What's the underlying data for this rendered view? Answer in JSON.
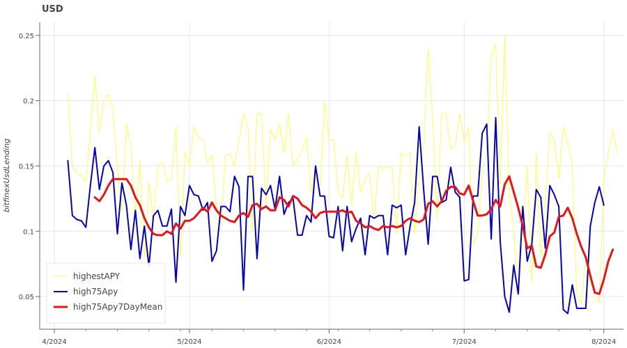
{
  "chart_data": {
    "type": "line",
    "title": "USD",
    "ylabel": "bitfinexUsdLending",
    "xlabel": "",
    "ylim": [
      0.025,
      0.26
    ],
    "x_ticks": [
      {
        "label": "4/2024",
        "day": 0
      },
      {
        "label": "5/2024",
        "day": 30
      },
      {
        "label": "6/2024",
        "day": 61
      },
      {
        "label": "7/2024",
        "day": 91
      },
      {
        "label": "8/2024",
        "day": 122
      }
    ],
    "y_ticks": [
      0.05,
      0.1,
      0.15,
      0.2,
      0.25
    ],
    "y_tick_labels": [
      "0.05",
      "0.1",
      "0.15",
      "0.2",
      "0.25"
    ],
    "x_start_day": 3,
    "x_end_day": 122,
    "grid": true,
    "legend_position": "bottom-left",
    "series": [
      {
        "name": "highestAPY",
        "color": "#ffff4d",
        "values": [
          0.205,
          0.15,
          0.145,
          0.143,
          0.138,
          0.177,
          0.219,
          0.175,
          0.2,
          0.205,
          0.193,
          0.148,
          0.115,
          0.182,
          0.165,
          0.11,
          0.154,
          0.08,
          0.138,
          0.108,
          0.15,
          0.153,
          0.138,
          0.14,
          0.18,
          0.08,
          0.16,
          0.15,
          0.18,
          0.172,
          0.17,
          0.152,
          0.158,
          0.12,
          0.105,
          0.158,
          0.159,
          0.15,
          0.17,
          0.19,
          0.18,
          0.1,
          0.19,
          0.19,
          0.12,
          0.178,
          0.17,
          0.182,
          0.16,
          0.19,
          0.15,
          0.155,
          0.162,
          0.172,
          0.13,
          0.15,
          0.128,
          0.2,
          0.17,
          0.17,
          0.13,
          0.125,
          0.158,
          0.12,
          0.16,
          0.13,
          0.14,
          0.145,
          0.109,
          0.15,
          0.148,
          0.15,
          0.148,
          0.098,
          0.16,
          0.158,
          0.16,
          0.098,
          0.145,
          0.165,
          0.24,
          0.185,
          0.11,
          0.19,
          0.19,
          0.163,
          0.165,
          0.19,
          0.168,
          0.18,
          0.09,
          0.098,
          0.145,
          0.16,
          0.235,
          0.243,
          0.135,
          0.25,
          0.13,
          0.1,
          0.05,
          0.1,
          0.15,
          0.06,
          0.16,
          0.08,
          0.12,
          0.175,
          0.17,
          0.14,
          0.18,
          0.168,
          0.15,
          0.05,
          0.045,
          0.08,
          0.06,
          0.055,
          0.045,
          0.14,
          0.16,
          0.178,
          0.16
        ]
      },
      {
        "name": "high75Apy",
        "color": "#0000cc",
        "values": [
          0.154,
          0.112,
          0.109,
          0.108,
          0.103,
          0.135,
          0.164,
          0.132,
          0.15,
          0.154,
          0.145,
          0.098,
          0.137,
          0.12,
          0.086,
          0.116,
          0.079,
          0.104,
          0.073,
          0.112,
          0.116,
          0.104,
          0.104,
          0.117,
          0.061,
          0.119,
          0.112,
          0.135,
          0.128,
          0.127,
          0.116,
          0.122,
          0.077,
          0.085,
          0.119,
          0.119,
          0.115,
          0.142,
          0.134,
          0.055,
          0.142,
          0.142,
          0.079,
          0.133,
          0.128,
          0.135,
          0.117,
          0.142,
          0.113,
          0.122,
          0.125,
          0.097,
          0.097,
          0.112,
          0.107,
          0.15,
          0.127,
          0.127,
          0.096,
          0.095,
          0.119,
          0.085,
          0.119,
          0.092,
          0.102,
          0.11,
          0.082,
          0.112,
          0.11,
          0.112,
          0.112,
          0.082,
          0.12,
          0.118,
          0.12,
          0.082,
          0.104,
          0.122,
          0.18,
          0.132,
          0.09,
          0.142,
          0.142,
          0.122,
          0.124,
          0.149,
          0.13,
          0.126,
          0.062,
          0.063,
          0.127,
          0.127,
          0.175,
          0.182,
          0.094,
          0.187,
          0.092,
          0.05,
          0.038,
          0.074,
          0.052,
          0.119,
          0.077,
          0.09,
          0.132,
          0.126,
          0.087,
          0.135,
          0.128,
          0.119,
          0.04,
          0.037,
          0.059,
          0.041,
          0.041,
          0.041,
          0.104,
          0.122,
          0.134,
          0.12
        ]
      },
      {
        "name": "high75Apy7DayMean",
        "color": "#ee1111",
        "values": [
          null,
          null,
          null,
          null,
          null,
          null,
          0.126,
          0.123,
          0.128,
          0.135,
          0.14,
          0.14,
          0.14,
          0.14,
          0.135,
          0.126,
          0.12,
          0.11,
          0.103,
          0.098,
          0.097,
          0.097,
          0.1,
          0.098,
          0.106,
          0.102,
          0.108,
          0.108,
          0.11,
          0.114,
          0.118,
          0.115,
          0.122,
          0.116,
          0.112,
          0.11,
          0.108,
          0.107,
          0.112,
          0.114,
          0.111,
          0.12,
          0.121,
          0.117,
          0.119,
          0.116,
          0.116,
          0.126,
          0.124,
          0.119,
          0.127,
          0.125,
          0.12,
          0.118,
          0.115,
          0.11,
          0.114,
          0.115,
          0.115,
          0.115,
          0.115,
          0.116,
          0.114,
          0.115,
          0.108,
          0.106,
          0.103,
          0.104,
          0.102,
          0.101,
          0.104,
          0.103,
          0.104,
          0.103,
          0.104,
          0.108,
          0.11,
          0.108,
          0.107,
          0.109,
          0.121,
          0.123,
          0.119,
          0.123,
          0.131,
          0.134,
          0.134,
          0.129,
          0.128,
          0.135,
          0.123,
          0.112,
          0.112,
          0.113,
          0.117,
          0.124,
          0.119,
          0.136,
          0.142,
          0.13,
          0.118,
          0.104,
          0.087,
          0.089,
          0.073,
          0.072,
          0.082,
          0.096,
          0.099,
          0.111,
          0.112,
          0.118,
          0.11,
          0.098,
          0.088,
          0.08,
          0.066,
          0.053,
          0.052,
          0.063,
          0.077,
          0.086
        ]
      }
    ]
  }
}
